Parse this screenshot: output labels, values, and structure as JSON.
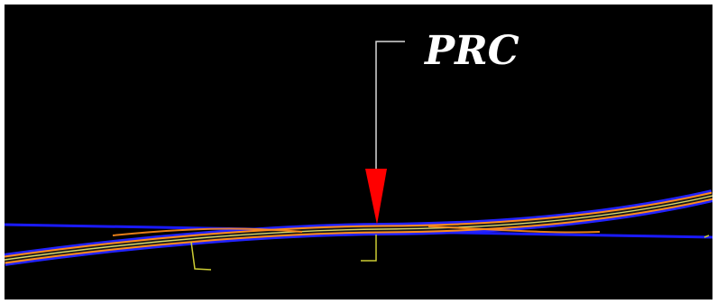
{
  "annotation": {
    "label": "PRC"
  },
  "colors": {
    "background": "#000000",
    "frame_border": "#ffffff",
    "alignment_blue": "#1a1aff",
    "alignment_orange": "#ff8c1a",
    "alignment_center": "#d9d966",
    "arrow_red": "#ff0000",
    "leader_line": "#d9d9d9",
    "station_tick": "#cccc33"
  }
}
